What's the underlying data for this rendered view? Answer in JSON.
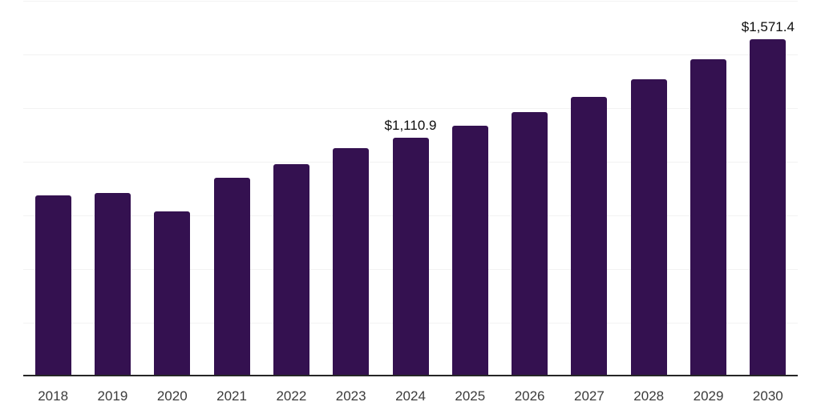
{
  "chart_data": {
    "type": "bar",
    "title": "",
    "xlabel": "",
    "ylabel": "",
    "categories": [
      "2018",
      "2019",
      "2020",
      "2021",
      "2022",
      "2023",
      "2024",
      "2025",
      "2026",
      "2027",
      "2028",
      "2029",
      "2030"
    ],
    "values": [
      843,
      855,
      769,
      925,
      989,
      1063,
      1110.9,
      1168,
      1231,
      1302,
      1384,
      1478,
      1571.4
    ],
    "data_labels": {
      "2024": "$1,110.9",
      "2030": "$1,571.4"
    },
    "ylim": [
      0,
      1750
    ],
    "gridline_step": 250,
    "grid": true,
    "legend_position": "none",
    "bar_color": "#341150",
    "gridline_color": "#f2f2f2",
    "axis_line_color": "#262626",
    "tick_label_color": "#3b3b3b",
    "data_label_color": "#0d0d0d",
    "background_color": "#ffffff"
  }
}
